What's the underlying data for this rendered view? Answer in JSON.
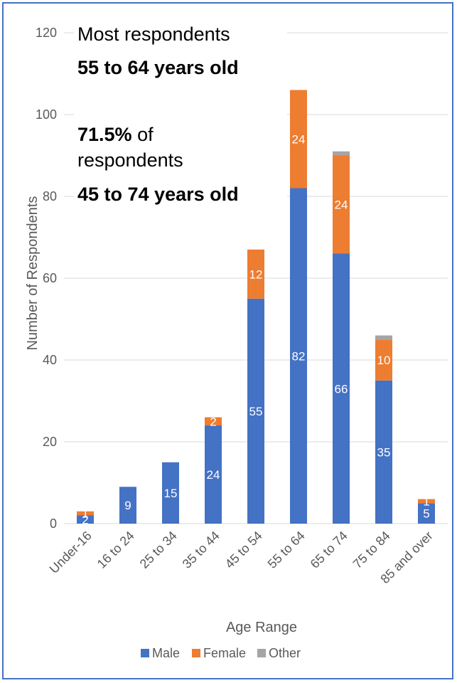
{
  "chart_data": {
    "type": "bar",
    "stacked": true,
    "categories": [
      "Under-16",
      "16 to 24",
      "25 to 34",
      "35 to 44",
      "45 to 54",
      "55 to 64",
      "65 to 74",
      "75 to 84",
      "85 and over"
    ],
    "series": [
      {
        "name": "Male",
        "color": "#4472C4",
        "values": [
          2,
          9,
          15,
          24,
          55,
          82,
          66,
          35,
          5
        ]
      },
      {
        "name": "Female",
        "color": "#ED7D31",
        "values": [
          1,
          0,
          0,
          2,
          12,
          24,
          24,
          10,
          1
        ]
      },
      {
        "name": "Other",
        "color": "#A5A5A5",
        "values": [
          0,
          0,
          0,
          0,
          0,
          0,
          1,
          1,
          0
        ]
      }
    ],
    "data_labels": {
      "Male": [
        "2",
        "9",
        "15",
        "24",
        "55",
        "82",
        "66",
        "35",
        "5"
      ],
      "Female": [
        "1",
        "",
        "",
        "2",
        "12",
        "24",
        "24",
        "10",
        "1"
      ]
    },
    "xlabel": "Age Range",
    "ylabel": "Number of Respondents",
    "ylim": [
      0,
      120
    ],
    "yticks": [
      0,
      20,
      40,
      60,
      80,
      100,
      120
    ],
    "grid": true,
    "legend_position": "bottom",
    "annotations": {
      "line1": "Most respondents",
      "line2": "55 to 64 years old",
      "line3_bold": "71.5%",
      "line3_rest": " of",
      "line4": "respondents",
      "line5": "45 to 74 years old"
    }
  }
}
